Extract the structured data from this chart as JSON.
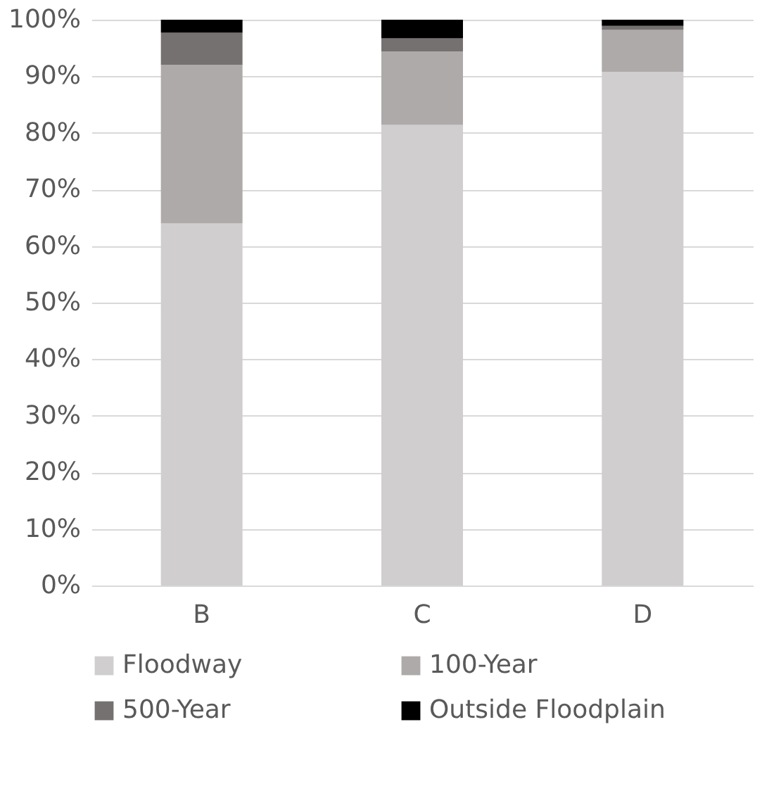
{
  "chart_data": {
    "type": "bar",
    "stacked": true,
    "categories": [
      "B",
      "C",
      "D"
    ],
    "series": [
      {
        "name": "Floodway",
        "color": "#d0cece",
        "values": [
          64,
          81.4,
          90.8
        ]
      },
      {
        "name": "100-Year",
        "color": "#aeaaaa",
        "values": [
          28,
          13,
          7.4
        ]
      },
      {
        "name": "500-Year",
        "color": "#767171",
        "values": [
          5.7,
          2.3,
          0.7
        ]
      },
      {
        "name": "Outside Floodplain",
        "color": "#000000",
        "values": [
          2.3,
          3.3,
          1.1
        ]
      }
    ],
    "ylim": [
      0,
      100
    ],
    "yticks": [
      {
        "value": 0,
        "label": "0%"
      },
      {
        "value": 10,
        "label": "10%"
      },
      {
        "value": 20,
        "label": "20%"
      },
      {
        "value": 30,
        "label": "30%"
      },
      {
        "value": 40,
        "label": "40%"
      },
      {
        "value": 50,
        "label": "50%"
      },
      {
        "value": 60,
        "label": "60%"
      },
      {
        "value": 70,
        "label": "70%"
      },
      {
        "value": 80,
        "label": "80%"
      },
      {
        "value": 90,
        "label": "90%"
      },
      {
        "value": 100,
        "label": "100%"
      }
    ],
    "grid": "y",
    "legend": "bottom"
  }
}
